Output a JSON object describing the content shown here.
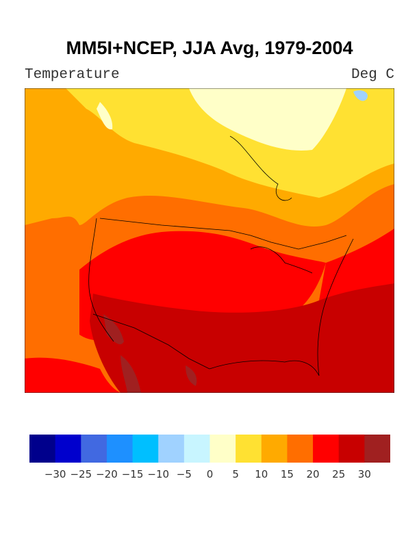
{
  "title": "MM5I+NCEP, JJA Avg, 1979-2004",
  "left_label": "Temperature",
  "right_label": "Deg C",
  "colorbar": {
    "colors": [
      "#00008C",
      "#0000CD",
      "#4169E1",
      "#1E90FF",
      "#00BFFF",
      "#A0D2FF",
      "#C8F5FF",
      "#FFFFC8",
      "#FFE132",
      "#FFAA00",
      "#FF6E00",
      "#FF0000",
      "#C80000",
      "#A02020"
    ],
    "tick_labels": [
      "−30",
      "−25",
      "−20",
      "−15",
      "−10",
      "−5",
      "0",
      "5",
      "10",
      "15",
      "20",
      "25",
      "30"
    ]
  },
  "chart_data": {
    "type": "heatmap",
    "title": "MM5I+NCEP, JJA Avg, 1979-2004",
    "variable": "Temperature",
    "units": "Deg C",
    "levels": [
      -30,
      -25,
      -20,
      -15,
      -10,
      -5,
      0,
      5,
      10,
      15,
      20,
      25,
      30
    ]
  }
}
